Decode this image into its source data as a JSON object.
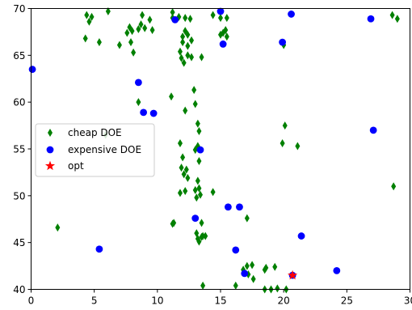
{
  "chart_data": {
    "type": "scatter",
    "xlim": [
      0,
      30
    ],
    "ylim": [
      40,
      70
    ],
    "grid": false,
    "legend": {
      "placement": "center-left"
    },
    "x_ticks": [
      0,
      5,
      10,
      15,
      20,
      25,
      30
    ],
    "y_ticks": [
      40,
      45,
      50,
      55,
      60,
      65,
      70
    ],
    "x_tick_labels": [
      "0",
      "5",
      "10",
      "15",
      "20",
      "25",
      "30"
    ],
    "y_tick_labels": [
      "40",
      "45",
      "50",
      "55",
      "60",
      "65",
      "70"
    ],
    "series": [
      {
        "name": "cheap DOE",
        "marker": "thin-diamond",
        "color": "#008000",
        "points": [
          [
            4.4,
            69.3
          ],
          [
            4.6,
            68.6
          ],
          [
            4.8,
            69.1
          ],
          [
            6.1,
            69.7
          ],
          [
            4.3,
            66.8
          ],
          [
            5.4,
            66.4
          ],
          [
            7.0,
            66.1
          ],
          [
            7.6,
            67.4
          ],
          [
            7.8,
            68.0
          ],
          [
            8.0,
            67.6
          ],
          [
            8.5,
            67.8
          ],
          [
            8.8,
            69.3
          ],
          [
            8.7,
            68.3
          ],
          [
            9.0,
            67.9
          ],
          [
            9.4,
            68.8
          ],
          [
            9.6,
            67.7
          ],
          [
            7.9,
            66.4
          ],
          [
            8.1,
            65.3
          ],
          [
            11.2,
            69.6
          ],
          [
            11.2,
            69.0
          ],
          [
            11.7,
            69.1
          ],
          [
            12.2,
            69.0
          ],
          [
            12.6,
            68.9
          ],
          [
            12.0,
            67.0
          ],
          [
            12.0,
            66.4
          ],
          [
            12.2,
            67.6
          ],
          [
            12.4,
            67.2
          ],
          [
            12.7,
            66.6
          ],
          [
            11.8,
            65.4
          ],
          [
            11.9,
            64.7
          ],
          [
            12.1,
            64.2
          ],
          [
            12.4,
            65.0
          ],
          [
            12.7,
            64.8
          ],
          [
            12.4,
            66.0
          ],
          [
            13.5,
            64.8
          ],
          [
            14.4,
            69.3
          ],
          [
            15.0,
            69.0
          ],
          [
            15.2,
            67.4
          ],
          [
            15.4,
            67.7
          ],
          [
            15.5,
            69.0
          ],
          [
            15.5,
            67.0
          ],
          [
            15.0,
            67.2
          ],
          [
            20.0,
            66.1
          ],
          [
            11.1,
            60.6
          ],
          [
            12.9,
            61.3
          ],
          [
            13.0,
            59.8
          ],
          [
            12.2,
            59.1
          ],
          [
            8.5,
            60.0
          ],
          [
            13.2,
            57.7
          ],
          [
            13.3,
            56.9
          ],
          [
            11.8,
            55.6
          ],
          [
            13.2,
            55.3
          ],
          [
            13.0,
            54.9
          ],
          [
            12.0,
            54.1
          ],
          [
            11.9,
            53.0
          ],
          [
            12.3,
            52.8
          ],
          [
            13.3,
            53.7
          ],
          [
            12.1,
            52.3
          ],
          [
            12.4,
            51.9
          ],
          [
            13.2,
            51.6
          ],
          [
            13.3,
            50.8
          ],
          [
            11.8,
            50.3
          ],
          [
            12.2,
            50.5
          ],
          [
            13.0,
            50.6
          ],
          [
            13.1,
            49.8
          ],
          [
            13.4,
            50.1
          ],
          [
            14.4,
            50.4
          ],
          [
            20.1,
            57.5
          ],
          [
            19.9,
            55.6
          ],
          [
            21.1,
            55.3
          ],
          [
            5.9,
            56.5
          ],
          [
            11.2,
            47.0
          ],
          [
            11.3,
            47.1
          ],
          [
            13.5,
            47.1
          ],
          [
            13.1,
            46.0
          ],
          [
            13.3,
            45.1
          ],
          [
            13.5,
            45.6
          ],
          [
            13.6,
            45.7
          ],
          [
            13.2,
            45.4
          ],
          [
            13.8,
            45.7
          ],
          [
            17.1,
            47.6
          ],
          [
            2.1,
            46.6
          ],
          [
            28.6,
            69.3
          ],
          [
            29.0,
            68.9
          ],
          [
            28.7,
            51.0
          ],
          [
            16.8,
            42.1
          ],
          [
            17.1,
            42.5
          ],
          [
            17.5,
            42.6
          ],
          [
            18.5,
            42.1
          ],
          [
            18.6,
            42.3
          ],
          [
            19.3,
            42.4
          ],
          [
            17.2,
            41.6
          ],
          [
            17.6,
            41.1
          ],
          [
            16.2,
            40.4
          ],
          [
            18.5,
            40.0
          ],
          [
            19.0,
            40.0
          ],
          [
            19.5,
            40.1
          ],
          [
            20.2,
            40.0
          ],
          [
            13.6,
            40.4
          ]
        ]
      },
      {
        "name": "expensive DOE",
        "marker": "circle",
        "color": "#0000ff",
        "points": [
          [
            0.1,
            63.5
          ],
          [
            11.4,
            68.8
          ],
          [
            15.0,
            69.7
          ],
          [
            20.6,
            69.4
          ],
          [
            26.9,
            68.9
          ],
          [
            15.2,
            66.2
          ],
          [
            19.9,
            66.4
          ],
          [
            8.5,
            62.1
          ],
          [
            8.9,
            58.9
          ],
          [
            9.7,
            58.8
          ],
          [
            13.4,
            54.9
          ],
          [
            27.1,
            57.0
          ],
          [
            15.6,
            48.8
          ],
          [
            16.5,
            48.8
          ],
          [
            13.0,
            47.6
          ],
          [
            5.4,
            44.3
          ],
          [
            16.2,
            44.2
          ],
          [
            21.4,
            45.7
          ],
          [
            16.9,
            41.7
          ],
          [
            24.2,
            42.0
          ],
          [
            20.7,
            41.5
          ]
        ]
      },
      {
        "name": "opt",
        "marker": "star",
        "color": "#ff0000",
        "points": [
          [
            20.7,
            41.5
          ]
        ]
      }
    ]
  }
}
